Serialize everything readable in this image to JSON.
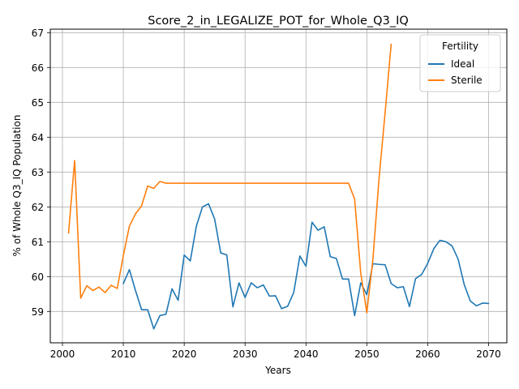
{
  "chart_data": {
    "type": "line",
    "title": "Score_2_in_LEGALIZE_POT_for_Whole_Q3_IQ",
    "xlabel": "Years",
    "ylabel": "% of Whole Q3_IQ Population",
    "xlim": [
      1998,
      2073
    ],
    "ylim": [
      58.1,
      67.1
    ],
    "xticks": [
      2000,
      2010,
      2020,
      2030,
      2040,
      2050,
      2060,
      2070
    ],
    "yticks": [
      59,
      60,
      61,
      62,
      63,
      64,
      65,
      66,
      67
    ],
    "grid": true,
    "legend": {
      "title": "Fertility",
      "placement": "top-right"
    },
    "series": [
      {
        "name": "Ideal",
        "color": "#1f77b4",
        "x": [
          2010,
          2011,
          2012,
          2013,
          2014,
          2015,
          2016,
          2017,
          2018,
          2019,
          2020,
          2021,
          2022,
          2023,
          2024,
          2025,
          2026,
          2027,
          2028,
          2029,
          2030,
          2031,
          2032,
          2033,
          2034,
          2035,
          2036,
          2037,
          2038,
          2039,
          2040,
          2041,
          2042,
          2043,
          2044,
          2045,
          2046,
          2047,
          2048,
          2049,
          2050,
          2051,
          2052,
          2053,
          2054,
          2055,
          2056,
          2057,
          2058,
          2059,
          2060,
          2061,
          2062,
          2063,
          2064,
          2065,
          2066,
          2067,
          2068,
          2069,
          2070
        ],
        "y": [
          59.8,
          60.2,
          59.6,
          59.05,
          59.05,
          58.5,
          58.88,
          58.92,
          59.65,
          59.32,
          60.62,
          60.45,
          61.45,
          62.0,
          62.09,
          61.65,
          60.68,
          60.62,
          59.13,
          59.82,
          59.4,
          59.82,
          59.68,
          59.76,
          59.44,
          59.45,
          59.08,
          59.15,
          59.55,
          60.59,
          60.3,
          61.56,
          61.33,
          61.43,
          60.57,
          60.52,
          59.93,
          59.93,
          58.88,
          59.82,
          59.48,
          60.37,
          60.35,
          60.34,
          59.8,
          59.68,
          59.71,
          59.14,
          59.94,
          60.06,
          60.38,
          60.8,
          61.04,
          61.0,
          60.88,
          60.5,
          59.77,
          59.3,
          59.16,
          59.24,
          59.23
        ]
      },
      {
        "name": "Sterile",
        "color": "#ff7f0e",
        "x": [
          2001,
          2002,
          2003,
          2004,
          2005,
          2006,
          2007,
          2008,
          2009,
          2010,
          2011,
          2012,
          2013,
          2014,
          2015,
          2016,
          2017,
          2018,
          2019,
          2020,
          2021,
          2022,
          2023,
          2024,
          2025,
          2026,
          2027,
          2028,
          2029,
          2030,
          2031,
          2032,
          2033,
          2034,
          2035,
          2036,
          2037,
          2038,
          2039,
          2040,
          2041,
          2042,
          2043,
          2044,
          2045,
          2046,
          2047,
          2048,
          2049,
          2050,
          2051,
          2052,
          2053,
          2054
        ],
        "y": [
          61.25,
          63.33,
          59.38,
          59.74,
          59.6,
          59.7,
          59.54,
          59.75,
          59.66,
          60.6,
          61.45,
          61.8,
          62.03,
          62.6,
          62.53,
          62.73,
          62.68,
          62.68,
          62.68,
          62.68,
          62.68,
          62.68,
          62.68,
          62.68,
          62.68,
          62.68,
          62.68,
          62.68,
          62.68,
          62.68,
          62.68,
          62.68,
          62.68,
          62.68,
          62.68,
          62.68,
          62.68,
          62.68,
          62.68,
          62.68,
          62.68,
          62.68,
          62.68,
          62.68,
          62.68,
          62.68,
          62.68,
          62.22,
          60.1,
          58.96,
          60.5,
          62.8,
          64.7,
          66.67
        ]
      }
    ]
  }
}
